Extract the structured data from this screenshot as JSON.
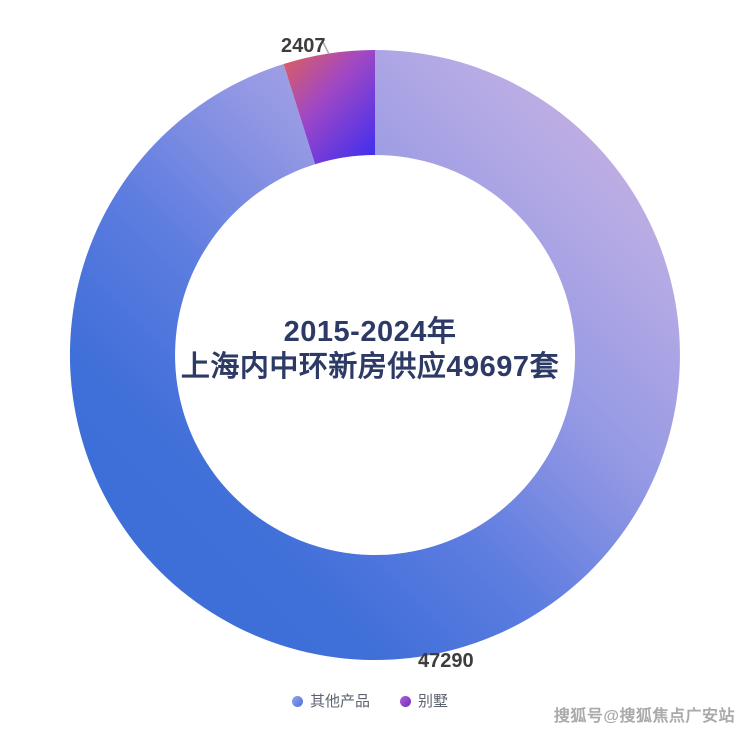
{
  "chart_data": {
    "type": "pie",
    "subtype": "donut",
    "title_line1": "2015-2024年",
    "title_line2": "上海内中环新房供应49697套",
    "total": 49697,
    "legend_position": "bottom",
    "legend": [
      "其他产品",
      "别墅"
    ],
    "series": [
      {
        "name": "其他产品",
        "value": 47290,
        "label": "47290",
        "gradient_stops": [
          [
            "0%",
            "#d2aed8"
          ],
          [
            "22%",
            "#b7abe5"
          ],
          [
            "45%",
            "#9599e4"
          ],
          [
            "68%",
            "#5c7ce0"
          ],
          [
            "88%",
            "#3f6fd8"
          ],
          [
            "100%",
            "#3e6fd8"
          ]
        ],
        "legend_dot_colors": [
          "#8fa7ee",
          "#4f6fdd"
        ]
      },
      {
        "name": "别墅",
        "value": 2407,
        "label": "2407",
        "gradient_stops": [
          [
            "0%",
            "#e06058"
          ],
          [
            "45%",
            "#a148c4"
          ],
          [
            "100%",
            "#4630ec"
          ]
        ],
        "legend_dot_colors": [
          "#b35fd8",
          "#6e2fbe"
        ]
      }
    ],
    "colors": {
      "title": "#2e3a66",
      "data_label": "#3d3d3d",
      "legend_text": "#5c6370",
      "watermark": "#9b9b9b",
      "background": "#ffffff",
      "label_line": "#aaaaaa"
    }
  },
  "watermark": "搜狐号@搜狐焦点广安站"
}
